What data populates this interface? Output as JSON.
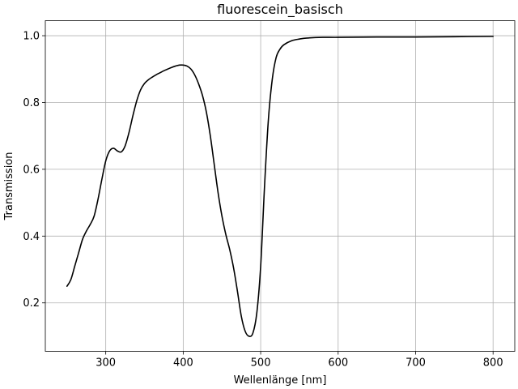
{
  "chart_data": {
    "type": "line",
    "title": "fluorescein_basisch",
    "xlabel": "Wellenlänge [nm]",
    "ylabel": "Transmission",
    "xlim": [
      222,
      828
    ],
    "ylim": [
      0.055,
      1.045
    ],
    "xticks": [
      300,
      400,
      500,
      600,
      700,
      800
    ],
    "yticks": [
      0.2,
      0.4,
      0.6,
      0.8,
      1.0
    ],
    "xtick_labels": [
      "300",
      "400",
      "500",
      "600",
      "700",
      "800"
    ],
    "ytick_labels": [
      "0.2",
      "0.4",
      "0.6",
      "0.8",
      "1.0"
    ],
    "grid": true,
    "legend": "none",
    "series": [
      {
        "color": "#000000",
        "x": [
          250,
          255,
          260,
          265,
          270,
          275,
          280,
          285,
          290,
          295,
          300,
          305,
          310,
          315,
          320,
          325,
          330,
          335,
          340,
          345,
          350,
          355,
          360,
          365,
          370,
          375,
          380,
          385,
          390,
          395,
          400,
          405,
          410,
          415,
          420,
          425,
          430,
          435,
          440,
          445,
          450,
          455,
          460,
          465,
          470,
          475,
          480,
          485,
          490,
          495,
          500,
          505,
          510,
          515,
          520,
          525,
          530,
          540,
          550,
          560,
          580,
          600,
          650,
          700,
          750,
          800
        ],
        "y": [
          0.25,
          0.27,
          0.31,
          0.35,
          0.39,
          0.415,
          0.435,
          0.46,
          0.51,
          0.57,
          0.625,
          0.655,
          0.663,
          0.655,
          0.652,
          0.67,
          0.71,
          0.76,
          0.805,
          0.838,
          0.857,
          0.868,
          0.876,
          0.883,
          0.889,
          0.895,
          0.9,
          0.905,
          0.909,
          0.912,
          0.912,
          0.909,
          0.9,
          0.882,
          0.855,
          0.82,
          0.77,
          0.7,
          0.615,
          0.53,
          0.46,
          0.405,
          0.36,
          0.305,
          0.235,
          0.16,
          0.115,
          0.1,
          0.11,
          0.17,
          0.31,
          0.55,
          0.75,
          0.87,
          0.935,
          0.96,
          0.973,
          0.985,
          0.99,
          0.993,
          0.995,
          0.995,
          0.996,
          0.996,
          0.997,
          0.998
        ]
      }
    ]
  }
}
